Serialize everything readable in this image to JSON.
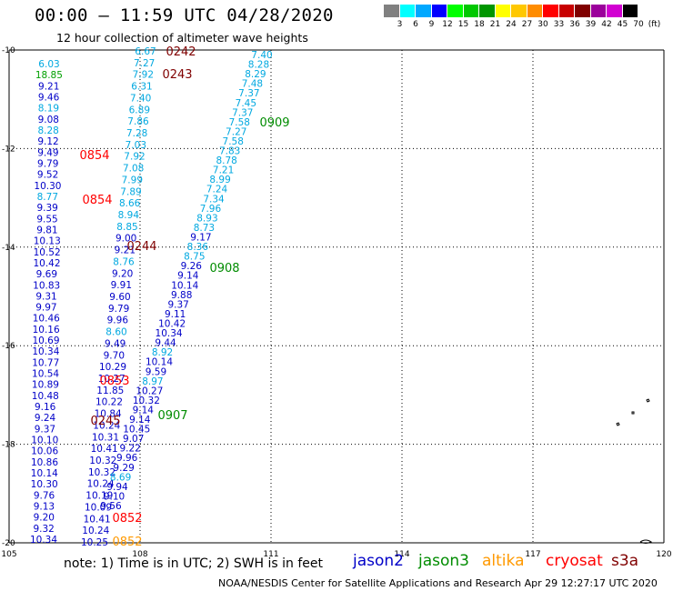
{
  "header": {
    "title": "00:00 — 11:59 UTC 04/28/2020",
    "subtitle": "12 hour collection of altimeter wave heights"
  },
  "scale": {
    "colors": [
      "#808080",
      "#00ffff",
      "#00a8ff",
      "#0000ff",
      "#00ff00",
      "#00c800",
      "#009600",
      "#ffff00",
      "#ffc800",
      "#ff8c00",
      "#ff0000",
      "#c80000",
      "#800000",
      "#9b009b",
      "#d200d2",
      "#000000"
    ],
    "labels": [
      "3",
      "6",
      "9",
      "12",
      "15",
      "18",
      "21",
      "24",
      "27",
      "30",
      "33",
      "36",
      "39",
      "42",
      "45",
      "70",
      "(ft)"
    ]
  },
  "axes": {
    "x_ticks": [
      "105",
      "108",
      "111",
      "114",
      "117",
      "120"
    ],
    "y_ticks": [
      "-10",
      "-12",
      "-14",
      "-16",
      "-18",
      "-20"
    ]
  },
  "footer": {
    "note": "note:  1) Time is in UTC;  2) SWH is in feet",
    "credit": "NOAA/NESDIS Center for Satellite Applications and Research    Apr 29 12:27:17 UTC 2020"
  },
  "satellites": [
    {
      "name": "jason2",
      "color": "#0000c8"
    },
    {
      "name": "jason3",
      "color": "#008c00"
    },
    {
      "name": "altika",
      "color": "#ff9900"
    },
    {
      "name": "cryosat",
      "color": "#ff0000"
    },
    {
      "name": "s3a",
      "color": "#800000"
    }
  ],
  "time_labels": [
    {
      "text": "0242",
      "sat": "s3a"
    },
    {
      "text": "0243",
      "sat": "s3a"
    },
    {
      "text": "0909",
      "sat": "jason3"
    },
    {
      "text": "0854",
      "sat": "cryosat"
    },
    {
      "text": "0854",
      "sat": "cryosat"
    },
    {
      "text": "0244",
      "sat": "s3a"
    },
    {
      "text": "0908",
      "sat": "jason3"
    },
    {
      "text": "0853",
      "sat": "cryosat"
    },
    {
      "text": "0245",
      "sat": "s3a"
    },
    {
      "text": "0907",
      "sat": "jason3"
    },
    {
      "text": "0852",
      "sat": "cryosat"
    },
    {
      "text": "0852",
      "sat": "altika"
    }
  ],
  "tracks": {
    "track_a": [
      "6.03",
      "18.85",
      "9.21",
      "9.46",
      "8.19",
      "9.08",
      "8.28",
      "9.12",
      "9.49",
      "9.79",
      "9.52",
      "10.30",
      "8.77",
      "9.39",
      "9.55",
      "9.81",
      "10.13",
      "10.52",
      "10.42",
      "9.69",
      "10.83",
      "9.31",
      "9.97",
      "10.46",
      "10.16",
      "10.69",
      "10.34",
      "10.77",
      "10.54",
      "10.89",
      "10.48",
      "9.16",
      "9.24",
      "9.37",
      "10.10",
      "10.06",
      "10.86",
      "10.14",
      "10.30",
      "9.76",
      "9.13",
      "9.20",
      "9.32",
      "10.34"
    ],
    "track_b": [
      "6.67",
      "7.27",
      "7.92",
      "6.31",
      "7.40",
      "6.89",
      "7.86",
      "7.28",
      "7.03",
      "7.92",
      "7.08",
      "7.99",
      "7.89",
      "8.66",
      "8.94",
      "8.85",
      "9.00",
      "9.21",
      "8.76",
      "9.20",
      "9.91",
      "9.60",
      "9.79",
      "9.96",
      "8.60",
      "9.49",
      "9.70",
      "10.29",
      "10.27",
      "11.85",
      "10.22",
      "10.84",
      "10.24",
      "10.31",
      "10.41",
      "10.32",
      "10.32",
      "10.24",
      "10.19",
      "10.09",
      "10.41",
      "10.24",
      "10.25"
    ],
    "track_c": [
      "7.40",
      "8.28",
      "8.29",
      "7.48",
      "7.37",
      "7.45",
      "7.37",
      "7.58",
      "7.27",
      "7.58",
      "7.83",
      "8.78",
      "7.21",
      "8.99",
      "7.24",
      "7.34",
      "7.96",
      "8.93",
      "8.73",
      "9.17",
      "8.36",
      "8.75",
      "9.26",
      "9.14",
      "10.14",
      "9.88",
      "9.37",
      "9.11",
      "10.42",
      "10.34",
      "9.44",
      "8.92",
      "10.14",
      "9.59",
      "8.97",
      "10.27",
      "10.32",
      "9.14",
      "9.14",
      "10.45",
      "9.07",
      "9.22",
      "9.96",
      "9.29",
      "8.69",
      "9.94",
      "9.10",
      "9.56"
    ]
  },
  "islands_label": ""
}
